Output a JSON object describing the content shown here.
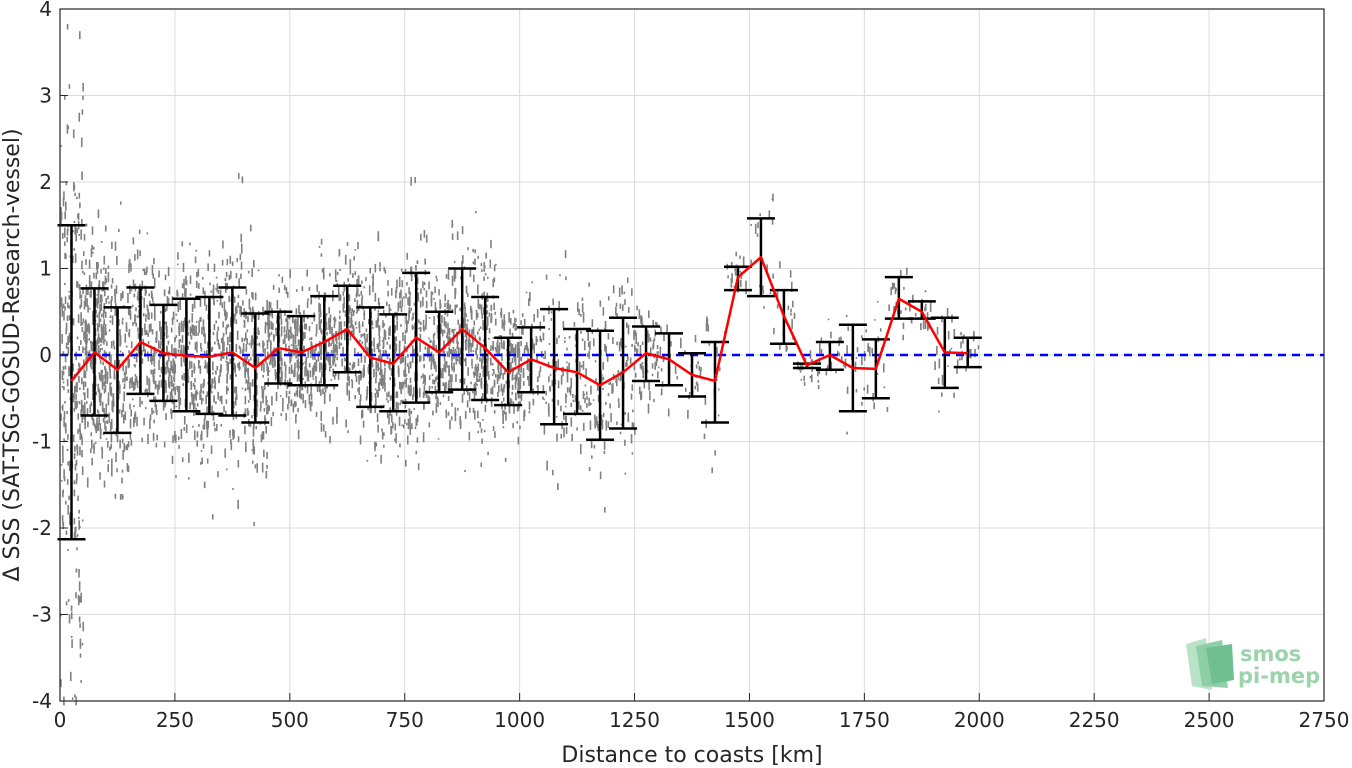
{
  "chart_data": {
    "type": "scatter",
    "xlabel": "Distance to coasts [km]",
    "ylabel": "Δ SSS (SAT-TSG-GOSUD-Research-vessel)",
    "xlim": [
      0,
      2750
    ],
    "ylim": [
      -4,
      4
    ],
    "xticks": [
      "0",
      "250",
      "500",
      "750",
      "1000",
      "1250",
      "1500",
      "1750",
      "2000",
      "2250",
      "2500",
      "2750"
    ],
    "yticks": [
      "4",
      "3",
      "2",
      "1",
      "0",
      "-1",
      "-2",
      "-3",
      "-4"
    ],
    "grid": true,
    "reference_line": {
      "y": 0,
      "color": "#0000ff",
      "style": "dashed"
    },
    "scatter_color": "#808080",
    "mean_color": "#ff0000",
    "errorbar_color": "#000000",
    "series": [
      {
        "x": [
          25,
          75,
          125,
          175,
          225,
          275,
          325,
          375,
          425,
          475,
          525,
          575,
          625,
          675,
          725,
          775,
          825,
          875,
          925,
          975,
          1025,
          1075,
          1125,
          1175,
          1225,
          1275,
          1325,
          1375,
          1425,
          1475,
          1525,
          1575,
          1625,
          1675,
          1725,
          1775,
          1825,
          1875,
          1925,
          1975
        ],
        "mean": [
          -0.3,
          0.03,
          -0.17,
          0.15,
          0.02,
          -0.01,
          -0.02,
          0.03,
          -0.15,
          0.08,
          0.03,
          0.15,
          0.3,
          -0.03,
          -0.1,
          0.2,
          0.03,
          0.3,
          0.08,
          -0.2,
          -0.05,
          -0.15,
          -0.2,
          -0.35,
          -0.2,
          0.02,
          -0.05,
          -0.23,
          -0.3,
          0.9,
          1.13,
          0.45,
          -0.12,
          0.0,
          -0.15,
          -0.16,
          0.65,
          0.5,
          0.03,
          0.02
        ],
        "lower": [
          -2.13,
          -0.7,
          -0.9,
          -0.45,
          -0.53,
          -0.65,
          -0.68,
          -0.7,
          -0.78,
          -0.33,
          -0.35,
          -0.35,
          -0.2,
          -0.6,
          -0.65,
          -0.55,
          -0.43,
          -0.4,
          -0.52,
          -0.58,
          -0.43,
          -0.8,
          -0.68,
          -0.98,
          -0.85,
          -0.3,
          -0.35,
          -0.48,
          -0.78,
          0.75,
          0.68,
          0.13,
          -0.15,
          -0.17,
          -0.65,
          -0.5,
          0.42,
          0.42,
          -0.38,
          -0.14
        ],
        "upper": [
          1.5,
          0.77,
          0.55,
          0.78,
          0.58,
          0.65,
          0.67,
          0.78,
          0.48,
          0.5,
          0.45,
          0.68,
          0.8,
          0.55,
          0.47,
          0.95,
          0.5,
          1.0,
          0.67,
          0.2,
          0.32,
          0.53,
          0.3,
          0.28,
          0.43,
          0.33,
          0.25,
          0.02,
          0.15,
          1.02,
          1.58,
          0.75,
          -0.1,
          0.15,
          0.35,
          0.18,
          0.9,
          0.62,
          0.43,
          0.2
        ]
      }
    ]
  },
  "logo": {
    "line1": "smos",
    "line2": "pi-mep"
  }
}
